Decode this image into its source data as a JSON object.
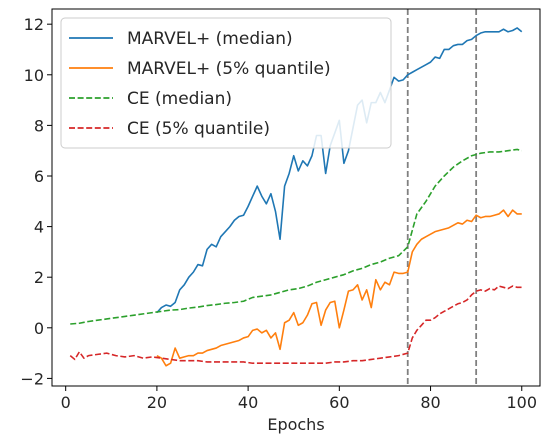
{
  "chart_data": {
    "type": "line",
    "title": "",
    "xlabel": "Epochs",
    "ylabel": "",
    "xlim": [
      -3,
      104
    ],
    "ylim": [
      -2.3,
      12.6
    ],
    "xticks": [
      0,
      20,
      40,
      60,
      80,
      100
    ],
    "yticks": [
      -2,
      0,
      2,
      4,
      6,
      8,
      10,
      12
    ],
    "vlines": [
      75,
      90
    ],
    "grid": false,
    "legend": {
      "placement": "top-left"
    },
    "series": [
      {
        "name": "MARVEL+ (median)",
        "color": "#1f77b4",
        "dash": "solid",
        "x": [
          20,
          21,
          22,
          23,
          24,
          25,
          26,
          27,
          28,
          29,
          30,
          31,
          32,
          33,
          34,
          35,
          36,
          37,
          38,
          39,
          40,
          41,
          42,
          43,
          44,
          45,
          46,
          47,
          48,
          49,
          50,
          51,
          52,
          53,
          54,
          55,
          56,
          57,
          58,
          59,
          60,
          61,
          62,
          63,
          64,
          65,
          66,
          67,
          68,
          69,
          70,
          71,
          72,
          73,
          74,
          75,
          76,
          77,
          78,
          79,
          80,
          81,
          82,
          83,
          84,
          85,
          86,
          87,
          88,
          89,
          90,
          91,
          92,
          93,
          94,
          95,
          96,
          97,
          98,
          99,
          100
        ],
        "y": [
          0.6,
          0.8,
          0.9,
          0.85,
          1.0,
          1.5,
          1.7,
          2.0,
          2.2,
          2.5,
          2.45,
          3.1,
          3.3,
          3.2,
          3.6,
          3.8,
          4.0,
          4.25,
          4.4,
          4.45,
          4.8,
          5.2,
          5.6,
          5.2,
          4.9,
          5.3,
          4.6,
          3.5,
          5.6,
          6.1,
          6.8,
          6.2,
          6.6,
          6.4,
          6.8,
          7.6,
          7.6,
          6.1,
          7.2,
          7.7,
          8.2,
          6.5,
          7.0,
          7.9,
          8.8,
          9.0,
          8.1,
          8.9,
          8.9,
          9.3,
          8.9,
          9.4,
          9.9,
          9.75,
          9.8,
          10.0,
          10.1,
          10.2,
          10.3,
          10.4,
          10.5,
          10.7,
          10.65,
          11.0,
          11.0,
          11.15,
          11.2,
          11.2,
          11.35,
          11.4,
          11.55,
          11.65,
          11.7,
          11.7,
          11.7,
          11.7,
          11.8,
          11.7,
          11.75,
          11.85,
          11.7
        ]
      },
      {
        "name": "MARVEL+ (5% quantile)",
        "color": "#ff7f0e",
        "dash": "solid",
        "x": [
          20,
          21,
          22,
          23,
          24,
          25,
          26,
          27,
          28,
          29,
          30,
          31,
          32,
          33,
          34,
          35,
          36,
          37,
          38,
          39,
          40,
          41,
          42,
          43,
          44,
          45,
          46,
          47,
          48,
          49,
          50,
          51,
          52,
          53,
          54,
          55,
          56,
          57,
          58,
          59,
          60,
          61,
          62,
          63,
          64,
          65,
          66,
          67,
          68,
          69,
          70,
          71,
          72,
          73,
          74,
          75,
          76,
          77,
          78,
          79,
          80,
          81,
          82,
          83,
          84,
          85,
          86,
          87,
          88,
          89,
          90,
          91,
          92,
          93,
          94,
          95,
          96,
          97,
          98,
          99,
          100
        ],
        "y": [
          -1.1,
          -1.2,
          -1.5,
          -1.4,
          -0.8,
          -1.2,
          -1.15,
          -1.1,
          -1.1,
          -1.0,
          -1.0,
          -0.9,
          -0.85,
          -0.8,
          -0.7,
          -0.65,
          -0.6,
          -0.55,
          -0.5,
          -0.4,
          -0.35,
          -0.1,
          -0.05,
          -0.2,
          -0.1,
          -0.4,
          -0.2,
          -0.85,
          0.2,
          0.3,
          0.6,
          0.1,
          0.2,
          0.5,
          0.95,
          1.0,
          0.1,
          0.7,
          1.0,
          1.05,
          0.0,
          0.7,
          1.45,
          1.5,
          1.7,
          1.1,
          1.5,
          0.8,
          1.9,
          1.5,
          1.8,
          1.7,
          2.2,
          2.15,
          2.15,
          2.2,
          3.0,
          3.3,
          3.5,
          3.6,
          3.7,
          3.8,
          3.85,
          3.9,
          3.95,
          4.05,
          4.15,
          4.1,
          4.25,
          4.2,
          4.45,
          4.35,
          4.4,
          4.4,
          4.45,
          4.5,
          4.65,
          4.4,
          4.65,
          4.5,
          4.5
        ]
      },
      {
        "name": "CE (median)",
        "color": "#2ca02c",
        "dash": "dashed",
        "x": [
          1,
          3,
          5,
          7,
          9,
          11,
          13,
          15,
          17,
          19,
          21,
          23,
          25,
          27,
          29,
          31,
          33,
          35,
          37,
          39,
          41,
          43,
          45,
          47,
          49,
          51,
          53,
          55,
          57,
          59,
          61,
          63,
          65,
          67,
          69,
          71,
          73,
          75,
          77,
          79,
          81,
          83,
          85,
          87,
          89,
          91,
          93,
          95,
          97,
          99,
          100
        ],
        "y": [
          0.15,
          0.18,
          0.25,
          0.3,
          0.35,
          0.4,
          0.45,
          0.5,
          0.55,
          0.6,
          0.65,
          0.7,
          0.72,
          0.78,
          0.82,
          0.88,
          0.92,
          0.97,
          1.0,
          1.05,
          1.2,
          1.25,
          1.3,
          1.4,
          1.5,
          1.55,
          1.65,
          1.8,
          1.9,
          2.0,
          2.1,
          2.25,
          2.35,
          2.5,
          2.6,
          2.75,
          2.85,
          3.2,
          4.5,
          5.0,
          5.6,
          6.0,
          6.35,
          6.6,
          6.8,
          6.9,
          6.95,
          6.95,
          7.0,
          7.05,
          7.0
        ]
      },
      {
        "name": "CE (5% quantile)",
        "color": "#d62728",
        "dash": "dashed",
        "x": [
          1,
          2,
          3,
          4,
          5,
          7,
          9,
          11,
          13,
          15,
          17,
          19,
          21,
          23,
          25,
          27,
          29,
          31,
          33,
          35,
          37,
          39,
          41,
          43,
          45,
          47,
          49,
          51,
          53,
          55,
          57,
          59,
          61,
          63,
          65,
          67,
          69,
          71,
          73,
          75,
          76,
          77,
          78,
          79,
          80,
          81,
          82,
          83,
          84,
          85,
          86,
          87,
          88,
          89,
          90,
          91,
          92,
          93,
          94,
          95,
          96,
          97,
          98,
          99,
          100
        ],
        "y": [
          -1.1,
          -1.25,
          -0.95,
          -1.2,
          -1.1,
          -1.05,
          -1.0,
          -1.1,
          -1.15,
          -1.1,
          -1.2,
          -1.15,
          -1.2,
          -1.25,
          -1.3,
          -1.3,
          -1.3,
          -1.35,
          -1.35,
          -1.35,
          -1.35,
          -1.35,
          -1.4,
          -1.4,
          -1.4,
          -1.4,
          -1.4,
          -1.4,
          -1.4,
          -1.4,
          -1.4,
          -1.35,
          -1.35,
          -1.3,
          -1.3,
          -1.25,
          -1.2,
          -1.15,
          -1.1,
          -1.0,
          -0.4,
          -0.1,
          0.1,
          0.3,
          0.3,
          0.4,
          0.55,
          0.65,
          0.75,
          0.85,
          0.95,
          1.0,
          1.1,
          1.3,
          1.45,
          1.5,
          1.45,
          1.55,
          1.5,
          1.65,
          1.6,
          1.55,
          1.65,
          1.6,
          1.6
        ]
      }
    ]
  }
}
